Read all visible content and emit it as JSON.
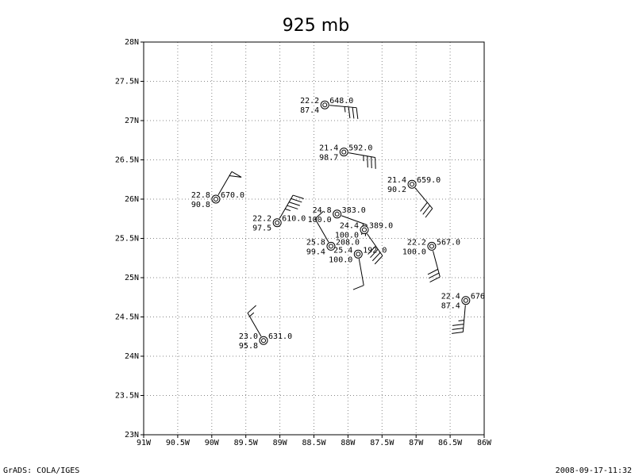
{
  "title": "925 mb",
  "map": {
    "xlim": [
      -91,
      -86
    ],
    "ylim": [
      23,
      28
    ],
    "grid": true,
    "xticks": [
      {
        "value": -91,
        "label": "91W"
      },
      {
        "value": -90.5,
        "label": "90.5W"
      },
      {
        "value": -90,
        "label": "90W"
      },
      {
        "value": -89.5,
        "label": "89.5W"
      },
      {
        "value": -89,
        "label": "89W"
      },
      {
        "value": -88.5,
        "label": "88.5W"
      },
      {
        "value": -88,
        "label": "88W"
      },
      {
        "value": -87.5,
        "label": "87.5W"
      },
      {
        "value": -87,
        "label": "87W"
      },
      {
        "value": -86.5,
        "label": "86.5W"
      },
      {
        "value": -86,
        "label": "86W"
      }
    ],
    "yticks": [
      {
        "value": 23,
        "label": "23N"
      },
      {
        "value": 23.5,
        "label": "23.5N"
      },
      {
        "value": 24,
        "label": "24N"
      },
      {
        "value": 24.5,
        "label": "24.5N"
      },
      {
        "value": 25,
        "label": "25N"
      },
      {
        "value": 25.5,
        "label": "25.5N"
      },
      {
        "value": 26,
        "label": "26N"
      },
      {
        "value": 26.5,
        "label": "26.5N"
      },
      {
        "value": 27,
        "label": "27N"
      },
      {
        "value": 27.5,
        "label": "27.5N"
      },
      {
        "value": 28,
        "label": "28N"
      }
    ]
  },
  "stations": [
    {
      "lon": -88.34,
      "lat": 27.2,
      "temp": "22.2",
      "dewpoint": "87.4",
      "height": "648.0",
      "wind_dir": 95,
      "wind_speed": 35
    },
    {
      "lon": -88.06,
      "lat": 26.6,
      "temp": "21.4",
      "dewpoint": "98.7",
      "height": "592.0",
      "wind_dir": 100,
      "wind_speed": 35
    },
    {
      "lon": -87.06,
      "lat": 26.19,
      "temp": "21.4",
      "dewpoint": "90.2",
      "height": "659.0",
      "wind_dir": 140,
      "wind_speed": 30
    },
    {
      "lon": -89.94,
      "lat": 26.0,
      "temp": "22.8",
      "dewpoint": "90.8",
      "height": "670.0",
      "wind_dir": 30,
      "wind_speed": 50
    },
    {
      "lon": -89.04,
      "lat": 25.7,
      "temp": "22.2",
      "dewpoint": "97.5",
      "height": "610.0",
      "wind_dir": 30,
      "wind_speed": 45
    },
    {
      "lon": -88.16,
      "lat": 25.81,
      "temp": "24.8",
      "dewpoint": "100.0",
      "height": "383.0",
      "wind_dir": 110,
      "wind_speed": 20
    },
    {
      "lon": -87.76,
      "lat": 25.61,
      "temp": "24.4",
      "dewpoint": "100.0",
      "height": "389.0",
      "wind_dir": 145,
      "wind_speed": 40
    },
    {
      "lon": -88.25,
      "lat": 25.4,
      "temp": "25.8",
      "dewpoint": "99.4",
      "height": "208.0",
      "wind_dir": 330,
      "wind_speed": 10
    },
    {
      "lon": -87.85,
      "lat": 25.3,
      "temp": "25.4",
      "dewpoint": "100.0",
      "height": "192.0",
      "wind_dir": 170,
      "wind_speed": 10
    },
    {
      "lon": -86.77,
      "lat": 25.4,
      "temp": "22.2",
      "dewpoint": "100.0",
      "height": "567.0",
      "wind_dir": 165,
      "wind_speed": 30
    },
    {
      "lon": -86.27,
      "lat": 24.71,
      "temp": "22.4",
      "dewpoint": "87.4",
      "height": "676",
      "wind_dir": 185,
      "wind_speed": 35
    },
    {
      "lon": -89.24,
      "lat": 24.2,
      "temp": "23.0",
      "dewpoint": "95.8",
      "height": "631.0",
      "wind_dir": 330,
      "wind_speed": 15
    }
  ],
  "footer": {
    "left": "GrADS: COLA/IGES",
    "right": "2008-09-17-11:32"
  }
}
